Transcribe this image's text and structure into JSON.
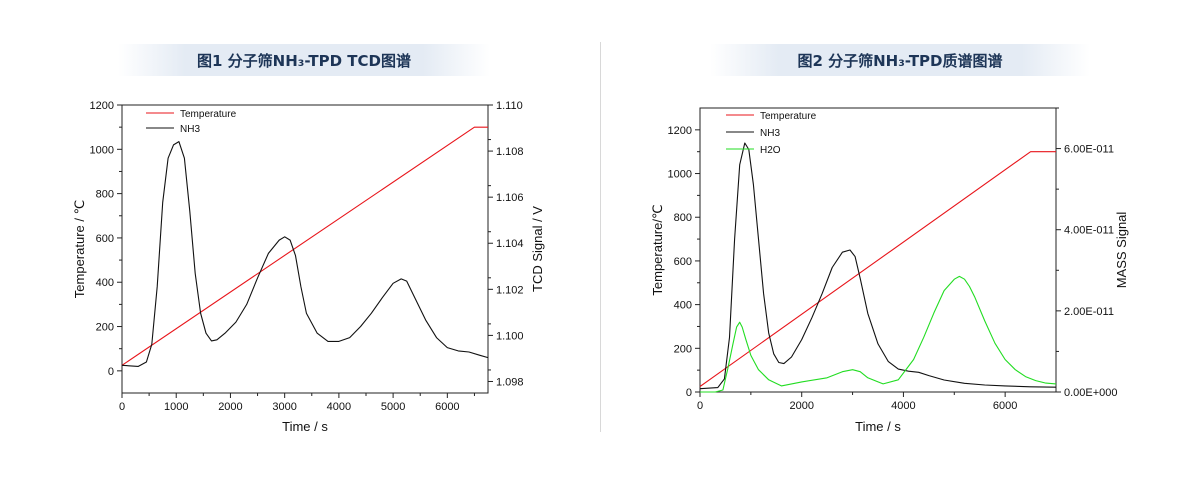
{
  "colors": {
    "temperature": "#e8151b",
    "nh3": "#111111",
    "h2o": "#22dd22",
    "title": "#1d3557"
  },
  "chart_data": [
    {
      "type": "line",
      "title": "图1 分子筛NH₃-TPD TCD图谱",
      "xlabel": "Time / s",
      "ylabel": "Temperature / ℃",
      "y2label": "TCD Signal / V",
      "xlim": [
        0,
        6750
      ],
      "ylim": [
        -100,
        1200
      ],
      "y2lim": [
        1.0975,
        1.11
      ],
      "xticks": [
        "0",
        "1000",
        "2000",
        "3000",
        "4000",
        "5000",
        "6000"
      ],
      "yticks": [
        "0",
        "200",
        "400",
        "600",
        "800",
        "1000",
        "1200"
      ],
      "y2ticks": [
        "1.098",
        "1.100",
        "1.102",
        "1.104",
        "1.106",
        "1.108",
        "1.110"
      ],
      "legend": {
        "position": "top-left",
        "entries": [
          "Temperature",
          "NH3"
        ]
      },
      "series": [
        {
          "name": "Temperature",
          "axis": "left",
          "color": "temperature",
          "x": [
            0,
            6500,
            6750
          ],
          "y": [
            25,
            1100,
            1100
          ]
        },
        {
          "name": "NH3",
          "axis": "left",
          "color": "nh3",
          "x": [
            0,
            300,
            450,
            550,
            650,
            750,
            850,
            950,
            1050,
            1150,
            1250,
            1350,
            1450,
            1550,
            1650,
            1750,
            1900,
            2100,
            2300,
            2500,
            2700,
            2900,
            3000,
            3100,
            3200,
            3300,
            3400,
            3600,
            3800,
            4000,
            4200,
            4400,
            4600,
            4800,
            5000,
            5150,
            5250,
            5400,
            5600,
            5800,
            6000,
            6200,
            6400,
            6600,
            6750
          ],
          "y": [
            25,
            20,
            40,
            120,
            380,
            760,
            960,
            1020,
            1035,
            960,
            720,
            440,
            260,
            170,
            135,
            140,
            170,
            220,
            300,
            420,
            530,
            590,
            605,
            590,
            520,
            380,
            260,
            170,
            133,
            133,
            150,
            200,
            260,
            330,
            395,
            415,
            405,
            330,
            230,
            150,
            105,
            90,
            85,
            70,
            60
          ]
        }
      ]
    },
    {
      "type": "line",
      "title": "图2 分子筛NH₃-TPD质谱图谱",
      "xlabel": "Time / s",
      "ylabel": "Temperature/℃",
      "y2label": "MASS  Signal",
      "xlim": [
        0,
        7000
      ],
      "ylim": [
        0,
        1300
      ],
      "y2lim": [
        0,
        7e-11
      ],
      "xticks": [
        "0",
        "2000",
        "4000",
        "6000"
      ],
      "yticks": [
        "0",
        "200",
        "400",
        "600",
        "800",
        "1000",
        "1200"
      ],
      "y2ticks": [
        "0.00E+000",
        "2.00E-011",
        "4.00E-011",
        "6.00E-011"
      ],
      "legend": {
        "position": "top-left",
        "entries": [
          "Temperature",
          "NH3",
          "H2O"
        ]
      },
      "series": [
        {
          "name": "Temperature",
          "axis": "left",
          "color": "temperature",
          "x": [
            0,
            6500,
            7000
          ],
          "y": [
            25,
            1100,
            1100
          ]
        },
        {
          "name": "NH3",
          "axis": "left",
          "color": "nh3",
          "x": [
            0,
            350,
            480,
            580,
            680,
            780,
            880,
            960,
            1050,
            1150,
            1250,
            1350,
            1450,
            1550,
            1650,
            1800,
            2000,
            2200,
            2400,
            2600,
            2800,
            2950,
            3050,
            3150,
            3300,
            3500,
            3700,
            3900,
            4100,
            4300,
            4500,
            4800,
            5200,
            5600,
            6000,
            6500,
            7000
          ],
          "y": [
            15,
            20,
            60,
            250,
            700,
            1040,
            1140,
            1110,
            950,
            700,
            450,
            270,
            175,
            135,
            130,
            160,
            240,
            340,
            450,
            570,
            640,
            650,
            620,
            520,
            360,
            220,
            140,
            105,
            95,
            90,
            75,
            55,
            40,
            32,
            28,
            24,
            22
          ]
        }
      ],
      "series_right": [
        {
          "name": "H2O",
          "axis": "right",
          "color": "h2o",
          "x": [
            0,
            300,
            450,
            550,
            650,
            720,
            780,
            830,
            900,
            1000,
            1150,
            1350,
            1600,
            2000,
            2500,
            2800,
            3000,
            3150,
            3300,
            3600,
            3900,
            4200,
            4400,
            4600,
            4800,
            5000,
            5100,
            5200,
            5300,
            5400,
            5600,
            5800,
            6000,
            6200,
            6400,
            6600,
            6800,
            7000
          ],
          "y": [
            0.0,
            0.0,
            5e-13,
            6e-12,
            1.2e-11,
            1.6e-11,
            1.72e-11,
            1.6e-11,
            1.3e-11,
            9e-12,
            5.5e-12,
            3e-12,
            1.5e-12,
            2.5e-12,
            3.5e-12,
            5e-12,
            5.5e-12,
            5e-12,
            3.5e-12,
            2e-12,
            3e-12,
            8e-12,
            1.35e-11,
            1.95e-11,
            2.5e-11,
            2.78e-11,
            2.85e-11,
            2.78e-11,
            2.6e-11,
            2.35e-11,
            1.75e-11,
            1.2e-11,
            8e-12,
            5.5e-12,
            3.8e-12,
            2.8e-12,
            2.2e-12,
            2e-12
          ]
        }
      ]
    }
  ]
}
